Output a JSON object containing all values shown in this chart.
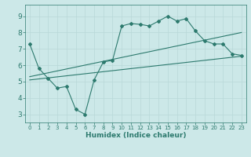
{
  "xlabel": "Humidex (Indice chaleur)",
  "ylabel": "",
  "bg_color": "#cce8e8",
  "line_color": "#2d7a6e",
  "xlim": [
    -0.5,
    23.5
  ],
  "ylim": [
    2.5,
    9.7
  ],
  "xticks": [
    0,
    1,
    2,
    3,
    4,
    5,
    6,
    7,
    8,
    9,
    10,
    11,
    12,
    13,
    14,
    15,
    16,
    17,
    18,
    19,
    20,
    21,
    22,
    23
  ],
  "yticks": [
    3,
    4,
    5,
    6,
    7,
    8,
    9
  ],
  "zigzag_x": [
    0,
    1,
    2,
    3,
    4,
    5,
    6,
    7,
    8,
    9,
    10,
    11,
    12,
    13,
    14,
    15,
    16,
    17,
    18,
    19,
    20,
    21,
    22,
    23
  ],
  "zigzag_y": [
    7.3,
    5.8,
    5.2,
    4.6,
    4.7,
    3.3,
    3.0,
    5.1,
    6.2,
    6.3,
    8.4,
    8.55,
    8.5,
    8.4,
    8.7,
    9.0,
    8.7,
    8.85,
    8.1,
    7.5,
    7.3,
    7.3,
    6.7,
    6.6
  ],
  "line1_x": [
    0,
    23
  ],
  "line1_y": [
    5.1,
    6.55
  ],
  "line2_x": [
    0,
    23
  ],
  "line2_y": [
    5.3,
    8.0
  ],
  "grid_color": "#b8d8d8",
  "grid_minor_color": "#d0e8e8"
}
